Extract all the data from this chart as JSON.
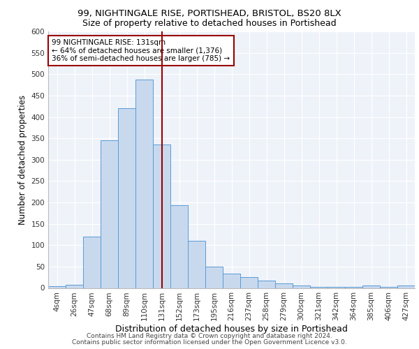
{
  "title1": "99, NIGHTINGALE RISE, PORTISHEAD, BRISTOL, BS20 8LX",
  "title2": "Size of property relative to detached houses in Portishead",
  "xlabel": "Distribution of detached houses by size in Portishead",
  "ylabel": "Number of detached properties",
  "categories": [
    "4sqm",
    "26sqm",
    "47sqm",
    "68sqm",
    "89sqm",
    "110sqm",
    "131sqm",
    "152sqm",
    "173sqm",
    "195sqm",
    "216sqm",
    "237sqm",
    "258sqm",
    "279sqm",
    "300sqm",
    "321sqm",
    "342sqm",
    "364sqm",
    "385sqm",
    "406sqm",
    "427sqm"
  ],
  "values": [
    4,
    7,
    120,
    345,
    420,
    488,
    336,
    193,
    110,
    50,
    34,
    25,
    17,
    10,
    5,
    3,
    3,
    2,
    5,
    2,
    6
  ],
  "bar_color": "#c8d9ee",
  "bar_edge_color": "#5b9bd5",
  "vline_x_index": 6,
  "vline_color": "#990000",
  "annotation_text": "99 NIGHTINGALE RISE: 131sqm\n← 64% of detached houses are smaller (1,376)\n36% of semi-detached houses are larger (785) →",
  "annotation_box_color": "white",
  "annotation_box_edge": "#990000",
  "ylim": [
    0,
    600
  ],
  "yticks": [
    0,
    50,
    100,
    150,
    200,
    250,
    300,
    350,
    400,
    450,
    500,
    550,
    600
  ],
  "footer1": "Contains HM Land Registry data © Crown copyright and database right 2024.",
  "footer2": "Contains public sector information licensed under the Open Government Licence v3.0.",
  "bg_color": "#eef2f9",
  "grid_color": "white",
  "title1_fontsize": 9.5,
  "title2_fontsize": 9,
  "xlabel_fontsize": 9,
  "ylabel_fontsize": 8.5,
  "footer_fontsize": 6.5,
  "tick_fontsize": 7.5,
  "annot_fontsize": 7.5
}
